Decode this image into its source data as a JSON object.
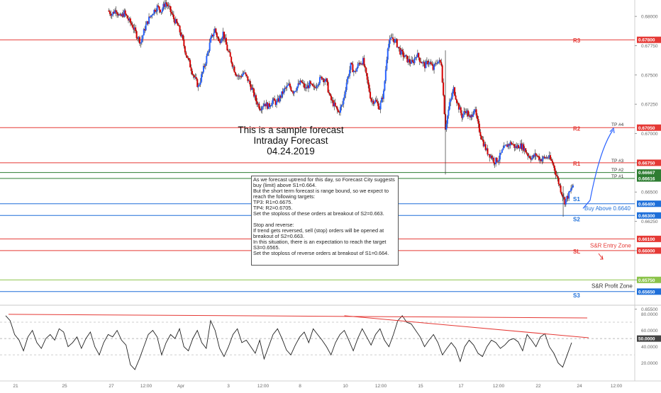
{
  "chart_data": {
    "type": "line",
    "instrument_view": "candlestick price chart with RSI oscillator",
    "title": [
      "This is a sample forecast",
      "Intraday Forecast",
      "04.24.2019"
    ],
    "price_axis": {
      "ylim": [
        0.6554,
        0.6814
      ],
      "ticks": [
        "0.68000",
        "0.67750",
        "0.67500",
        "0.67250",
        "0.67000",
        "0.66750",
        "0.66500",
        "0.66250",
        "0.66000",
        "0.65750",
        "0.65500"
      ]
    },
    "time_axis": {
      "ticks": [
        "21",
        "25",
        "27",
        "12:00",
        "Apr",
        "3",
        "12:00",
        "8",
        "10",
        "12:00",
        "15",
        "17",
        "12:00",
        "22",
        "24",
        "12:00"
      ]
    },
    "levels": [
      {
        "label": "R3",
        "price_tag": "0.67800",
        "color": "#e53935"
      },
      {
        "label": "R2",
        "price_tag": "0.67050",
        "color": "#e53935"
      },
      {
        "label": "R1",
        "price_tag": "0.66750",
        "color": "#e53935"
      },
      {
        "label": "",
        "price_tag": "0.66667",
        "color": "#2e7d32"
      },
      {
        "label": "",
        "price_tag": "0.66616",
        "color": "#2e7d32"
      },
      {
        "label": "S1",
        "price_tag": "0.66400",
        "color": "#1e6fd9"
      },
      {
        "label": "S2",
        "price_tag": "0.66300",
        "color": "#1e6fd9"
      },
      {
        "label": "",
        "price_tag": "0.66100",
        "color": "#e53935"
      },
      {
        "label": "SL",
        "price_tag": "0.66000",
        "color": "#e53935"
      },
      {
        "label": "",
        "price_tag": "0.65750",
        "color": "#8bc34a"
      },
      {
        "label": "S3",
        "price_tag": "0.65650",
        "color": "#1e6fd9"
      }
    ],
    "targets": [
      "TP #4",
      "TP #3",
      "TP #2",
      "TP #1"
    ],
    "zone_labels": {
      "buy": "Buy Above 0.6640",
      "entry": "S&R Entry Zone",
      "profit": "S&R Profit Zone"
    },
    "note_lines": [
      "As we forecast uptrend for this day, so Forecast City suggests buy (limit) above S1=0.664.",
      "But the short term forecast is range bound, so we expect to reach the following targets:",
      "TP3: R1=0.6675.",
      "TP4: R2=0.6705.",
      "Set the stoploss of these orders at breakout of S2=0.663.",
      "",
      "Stop and reverse:",
      "If trend gets reversed, sell (stop) orders will be opened at breakout of S2=0.663.",
      "In this situation, there is an expectation to reach the target S3=0.6565.",
      "Set the stoploss of reverse orders at breakout of S1=0.664."
    ],
    "oscillator": {
      "ylim": [
        5,
        90
      ],
      "ticks": [
        "80.0000",
        "60.0000",
        "40.0000",
        "20.0000"
      ],
      "current": "50.0000",
      "values": [
        78,
        72,
        55,
        48,
        35,
        52,
        60,
        45,
        38,
        50,
        55,
        48,
        62,
        58,
        40,
        45,
        52,
        38,
        50,
        58,
        40,
        30,
        45,
        55,
        52,
        60,
        48,
        42,
        18,
        12,
        25,
        40,
        55,
        60,
        52,
        30,
        45,
        55,
        50,
        62,
        40,
        35,
        50,
        60,
        45,
        38,
        72,
        60,
        38,
        28,
        40,
        55,
        62,
        45,
        48,
        40,
        32,
        48,
        25,
        40,
        55,
        62,
        50,
        36,
        30,
        42,
        52,
        58,
        45,
        62,
        55,
        48,
        40,
        30,
        45,
        55,
        60,
        48,
        35,
        50,
        62,
        52,
        42,
        55,
        62,
        48,
        40,
        55,
        72,
        78,
        70,
        68,
        60,
        52,
        40,
        48,
        55,
        45,
        30,
        38,
        45,
        38,
        22,
        40,
        48,
        42,
        32,
        28,
        40,
        48,
        45,
        38,
        42,
        48,
        50,
        46,
        35,
        55,
        48,
        40,
        52,
        56,
        40,
        32,
        20,
        15,
        30,
        45
      ],
      "upper_band": 70,
      "lower_band": 30,
      "trendline_2_start": 76
    },
    "price_path": [
      0.6805,
      0.6802,
      0.6806,
      0.6799,
      0.6803,
      0.6797,
      0.6792,
      0.6784,
      0.6778,
      0.679,
      0.6798,
      0.6804,
      0.6808,
      0.6805,
      0.6812,
      0.6806,
      0.6798,
      0.6792,
      0.6782,
      0.6768,
      0.6758,
      0.6748,
      0.674,
      0.6752,
      0.6765,
      0.678,
      0.6789,
      0.6778,
      0.6786,
      0.6772,
      0.6762,
      0.6752,
      0.6748,
      0.6752,
      0.6746,
      0.6738,
      0.6728,
      0.6722,
      0.6726,
      0.6723,
      0.6728,
      0.6726,
      0.6732,
      0.6738,
      0.6741,
      0.6736,
      0.674,
      0.6744,
      0.6738,
      0.6742,
      0.6738,
      0.6744,
      0.6748,
      0.6745,
      0.673,
      0.6724,
      0.6718,
      0.6725,
      0.6744,
      0.6758,
      0.6752,
      0.676,
      0.6762,
      0.6745,
      0.6728,
      0.6728,
      0.6722,
      0.6735,
      0.6775,
      0.6782,
      0.6778,
      0.677,
      0.6766,
      0.6762,
      0.676,
      0.6768,
      0.6762,
      0.6758,
      0.6762,
      0.6755,
      0.6762,
      0.676,
      0.6705,
      0.6725,
      0.6738,
      0.6725,
      0.6715,
      0.672,
      0.6712,
      0.6722,
      0.6706,
      0.6694,
      0.6685,
      0.6681,
      0.6676,
      0.6679,
      0.6686,
      0.669,
      0.6692,
      0.6688,
      0.669,
      0.6688,
      0.6682,
      0.6679,
      0.6682,
      0.6678,
      0.6679,
      0.668,
      0.6675,
      0.6664,
      0.6652,
      0.6642,
      0.6648,
      0.6656
    ]
  }
}
